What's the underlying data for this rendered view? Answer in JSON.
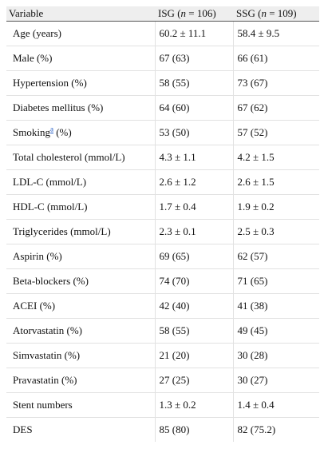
{
  "header": {
    "variable": "Variable",
    "isg_prefix": "ISG (",
    "isg_n": "n",
    "isg_suffix": " = 106)",
    "ssg_prefix": "SSG (",
    "ssg_n": "n",
    "ssg_suffix": " = 109)"
  },
  "footnote_marker": "a",
  "rows": [
    {
      "variable": "Age (years)",
      "isg": "60.2 ± 11.1",
      "ssg": "58.4 ± 9.5"
    },
    {
      "variable": "Male (%)",
      "isg": "67 (63)",
      "ssg": "66 (61)"
    },
    {
      "variable": "Hypertension (%)",
      "isg": "58 (55)",
      "ssg": "73 (67)"
    },
    {
      "variable": "Diabetes mellitus (%)",
      "isg": "64 (60)",
      "ssg": "67 (62)"
    },
    {
      "variable": "Smoking",
      "variable_suffix": " (%)",
      "isg": "53 (50)",
      "ssg": "57 (52)"
    },
    {
      "variable": "Total cholesterol (mmol/L)",
      "isg": "4.3 ± 1.1",
      "ssg": "4.2 ± 1.5"
    },
    {
      "variable": "LDL-C (mmol/L)",
      "isg": "2.6 ± 1.2",
      "ssg": "2.6 ± 1.5"
    },
    {
      "variable": "HDL-C (mmol/L)",
      "isg": "1.7 ± 0.4",
      "ssg": "1.9 ± 0.2"
    },
    {
      "variable": "Triglycerides (mmol/L)",
      "isg": "2.3 ± 0.1",
      "ssg": "2.5 ± 0.3"
    },
    {
      "variable": "Aspirin (%)",
      "isg": "69 (65)",
      "ssg": "62 (57)"
    },
    {
      "variable": "Beta-blockers (%)",
      "isg": "74 (70)",
      "ssg": "71 (65)"
    },
    {
      "variable": "ACEI (%)",
      "isg": "42 (40)",
      "ssg": "41 (38)"
    },
    {
      "variable": "Atorvastatin (%)",
      "isg": "58 (55)",
      "ssg": "49 (45)"
    },
    {
      "variable": "Simvastatin (%)",
      "isg": "21 (20)",
      "ssg": "30 (28)"
    },
    {
      "variable": "Pravastatin (%)",
      "isg": "27 (25)",
      "ssg": "30 (27)"
    },
    {
      "variable": "Stent numbers",
      "isg": "1.3 ± 0.2",
      "ssg": "1.4 ± 0.4"
    },
    {
      "variable": "DES",
      "isg": "85 (80)",
      "ssg": "82 (75.2)"
    }
  ]
}
